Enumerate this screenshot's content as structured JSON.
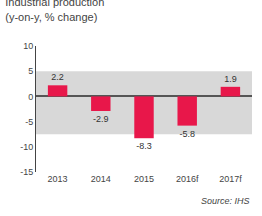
{
  "chart_data": {
    "type": "bar",
    "title": "Industrial production",
    "subtitle": "(y-on-y, % change)",
    "categories": [
      "2013",
      "2014",
      "2015",
      "2016f",
      "2017f"
    ],
    "values": [
      2.2,
      -2.9,
      -8.3,
      -5.8,
      1.9
    ],
    "color": "#e8174a",
    "ylim": [
      -15,
      10
    ],
    "yticks": [
      -15,
      -10,
      -5,
      0,
      5,
      10
    ],
    "grid": false,
    "data_labels": true,
    "band": {
      "range": [
        -7.5,
        5.0
      ],
      "color": "#d8d8d8"
    },
    "annotations": [
      "Source: IHS"
    ]
  }
}
